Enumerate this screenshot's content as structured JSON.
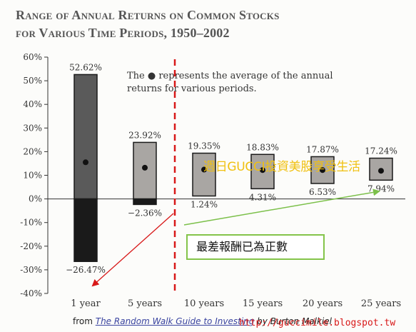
{
  "title_line1": "Range of Annual Returns on Common Stocks",
  "title_line2": "for Various Time Periods, 1950–2002",
  "legend_text_1": "The ● represents the average of the annual",
  "legend_text_2": "returns for various periods.",
  "source": {
    "prefix": "from ",
    "book": "The Random Walk Guide to Investing",
    "suffix": " by Burton Malkiel"
  },
  "blog_url": "http://guccimile.blogspot.tw",
  "watermark": "週日GUCCI投資美股享受生活",
  "callout": "最差報酬已為正數",
  "colors": {
    "bar_one_year_fill": "#5a5a5a",
    "bar_fill": "#a9a6a3",
    "bar_negative_fill": "#1a1a1a",
    "bar_stroke": "#1a1a1a",
    "divider": "#d81818",
    "arrow_red": "#d81818",
    "arrow_green": "#7cc04a",
    "axis": "#333333"
  },
  "chart_data": {
    "type": "range",
    "categories": [
      "1 year",
      "5 years",
      "10 years",
      "15 years",
      "20 years",
      "25 years"
    ],
    "high": [
      52.62,
      23.92,
      19.35,
      18.83,
      17.87,
      17.24
    ],
    "low": [
      -26.47,
      -2.36,
      1.24,
      4.31,
      6.53,
      7.94
    ],
    "average": [
      15.5,
      13.2,
      12.4,
      12.2,
      12.2,
      11.9
    ],
    "high_labels": [
      "52.62%",
      "23.92%",
      "19.35%",
      "18.83%",
      "17.87%",
      "17.24%"
    ],
    "low_labels": [
      "−26.47%",
      "−2.36%",
      "1.24%",
      "4.31%",
      "6.53%",
      "7.94%"
    ],
    "y_ticks": [
      60,
      50,
      40,
      30,
      20,
      10,
      0,
      -10,
      -20,
      -30,
      -40
    ],
    "y_tick_labels": [
      "60%",
      "50%",
      "40%",
      "30%",
      "20%",
      "10%",
      "0%",
      "-10%",
      "-20%",
      "-30%",
      "-40%"
    ],
    "ylim": [
      -40,
      60
    ],
    "grid": false,
    "annotations": [
      "dashed vertical divider between 5 years and 10 years"
    ]
  }
}
